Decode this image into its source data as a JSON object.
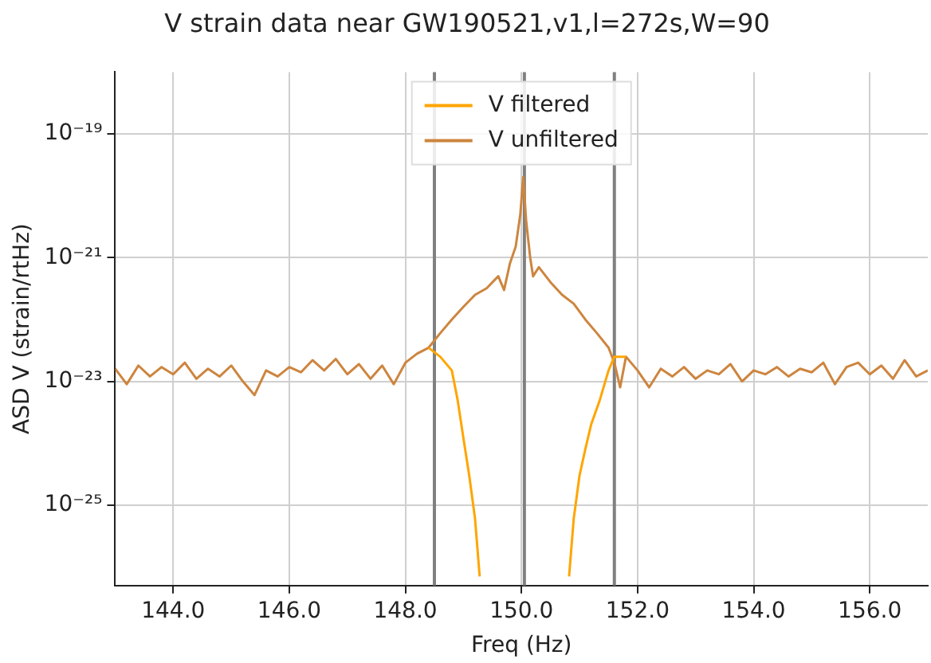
{
  "chart_data": {
    "type": "line",
    "title": "V strain data near GW190521,v1,l=272s,W=90",
    "xlabel": "Freq (Hz)",
    "ylabel": "ASD V (strain/rtHz)",
    "log": "y",
    "grid": true,
    "legend": "top",
    "xlim": [
      143,
      157
    ],
    "xticks": [
      {
        "value": 144,
        "label": "144.0"
      },
      {
        "value": 146,
        "label": "146.0"
      },
      {
        "value": 148,
        "label": "148.0"
      },
      {
        "value": 150,
        "label": "150.0"
      },
      {
        "value": 152,
        "label": "152.0"
      },
      {
        "value": 154,
        "label": "154.0"
      },
      {
        "value": 156,
        "label": "156.0"
      }
    ],
    "ylim": [
      5e-27,
      1e-18
    ],
    "yticks": [
      {
        "value": 1e-25,
        "label": "10⁻²⁵"
      },
      {
        "value": 1e-23,
        "label": "10⁻²³"
      },
      {
        "value": 1e-21,
        "label": "10⁻²¹"
      },
      {
        "value": 1e-19,
        "label": "10⁻¹⁹"
      }
    ],
    "ref_lines": [
      {
        "axis": "x",
        "value": 148.5,
        "color": "#808080"
      },
      {
        "axis": "x",
        "value": 150.05,
        "color": "#808080"
      },
      {
        "axis": "x",
        "value": 151.6,
        "color": "#808080"
      }
    ],
    "series": [
      {
        "name": "V filtered",
        "color": "#ffa500",
        "x": [
          148.4,
          148.6,
          148.8,
          148.9,
          149.0,
          149.1,
          149.2,
          149.28,
          150.05,
          150.82,
          150.9,
          151.0,
          151.1,
          151.2,
          151.35,
          151.5,
          151.6,
          151.8
        ],
        "values": [
          3.5e-23,
          2.5e-23,
          1.5e-23,
          5e-24,
          1.2e-24,
          3e-25,
          6e-26,
          7e-27,
          null,
          7e-27,
          6e-26,
          3e-25,
          8e-25,
          2e-24,
          5e-24,
          1.5e-23,
          2.5e-23,
          2.5e-23
        ]
      },
      {
        "name": "V unfiltered",
        "color": "#cd853f",
        "x": [
          143.0,
          143.2,
          143.4,
          143.6,
          143.8,
          144.0,
          144.2,
          144.4,
          144.6,
          144.8,
          145.0,
          145.2,
          145.4,
          145.6,
          145.8,
          146.0,
          146.2,
          146.4,
          146.6,
          146.8,
          147.0,
          147.2,
          147.4,
          147.6,
          147.8,
          148.0,
          148.2,
          148.4,
          148.6,
          148.8,
          149.0,
          149.2,
          149.4,
          149.6,
          149.7,
          149.8,
          149.9,
          149.98,
          150.03,
          150.08,
          150.15,
          150.2,
          150.3,
          150.5,
          150.7,
          150.9,
          151.1,
          151.3,
          151.5,
          151.6,
          151.7,
          151.8,
          152.0,
          152.2,
          152.4,
          152.6,
          152.8,
          153.0,
          153.2,
          153.4,
          153.6,
          153.8,
          154.0,
          154.2,
          154.4,
          154.6,
          154.8,
          155.0,
          155.2,
          155.4,
          155.6,
          155.8,
          156.0,
          156.2,
          156.4,
          156.6,
          156.8,
          157.0
        ],
        "values": [
          1.6e-23,
          9e-24,
          1.8e-23,
          1.2e-23,
          1.7e-23,
          1.3e-23,
          2e-23,
          1.1e-23,
          1.6e-23,
          1.2e-23,
          1.8e-23,
          1e-23,
          6e-24,
          1.5e-23,
          1.2e-23,
          1.7e-23,
          1.4e-23,
          2.2e-23,
          1.5e-23,
          2.3e-23,
          1.3e-23,
          1.9e-23,
          1.1e-23,
          1.8e-23,
          9e-24,
          2e-23,
          2.8e-23,
          3.5e-23,
          6e-23,
          1e-22,
          1.6e-22,
          2.5e-22,
          3.2e-22,
          5e-22,
          3e-22,
          8e-22,
          1.5e-21,
          5e-21,
          2e-20,
          4e-21,
          1e-21,
          5e-22,
          7e-22,
          4e-22,
          2.5e-22,
          1.8e-22,
          1e-22,
          6e-23,
          3.5e-23,
          2e-23,
          8e-24,
          2.5e-23,
          1.5e-23,
          8e-24,
          1.6e-23,
          1.2e-23,
          1.7e-23,
          1.1e-23,
          1.5e-23,
          1.3e-23,
          1.9e-23,
          1e-23,
          1.5e-23,
          1.3e-23,
          1.7e-23,
          1.2e-23,
          1.6e-23,
          1.4e-23,
          2e-23,
          9e-24,
          1.7e-23,
          2e-23,
          1.3e-23,
          1.8e-23,
          1.1e-23,
          2.2e-23,
          1.2e-23,
          1.5e-23
        ]
      }
    ]
  }
}
